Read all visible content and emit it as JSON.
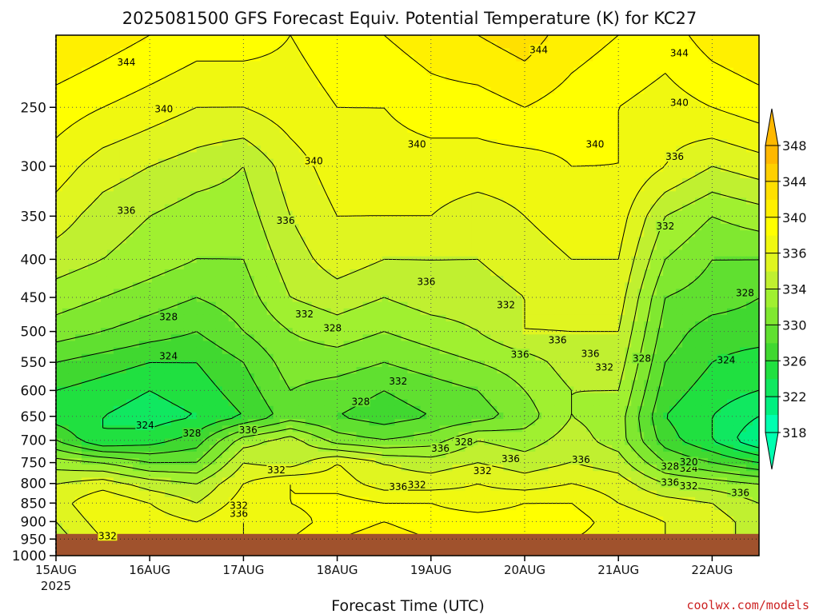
{
  "chart_data": {
    "type": "heatmap",
    "title": "2025081500 GFS Forecast Equiv. Potential Temperature (K) for KC27",
    "xlabel": "Forecast Time (UTC)",
    "ylabel": "",
    "credit": "coolwx.com/models",
    "y_scale": "log",
    "ylim": [
      1000,
      200
    ],
    "y_ticks": [
      "250",
      "300",
      "350",
      "400",
      "450",
      "500",
      "550",
      "600",
      "650",
      "700",
      "750",
      "800",
      "850",
      "900",
      "950",
      "1000"
    ],
    "y_tick_values": [
      250,
      300,
      350,
      400,
      450,
      500,
      550,
      600,
      650,
      700,
      750,
      800,
      850,
      900,
      950,
      1000
    ],
    "x_ticks": [
      "15AUG",
      "16AUG",
      "17AUG",
      "18AUG",
      "19AUG",
      "20AUG",
      "21AUG",
      "22AUG"
    ],
    "x_year": "2025",
    "x_range_days": [
      0,
      7.5
    ],
    "grid": true,
    "surface_pressure": 935,
    "surface_color": "#a0522d",
    "colorbar": {
      "levels": [
        318,
        320,
        322,
        324,
        326,
        328,
        330,
        332,
        334,
        336,
        338,
        340,
        342,
        344,
        346,
        348
      ],
      "labels": [
        "348",
        "344",
        "340",
        "336",
        "334",
        "330",
        "326",
        "322",
        "318"
      ],
      "colors": [
        "#00ffb0",
        "#00f080",
        "#10e860",
        "#20e040",
        "#40d830",
        "#60e030",
        "#80e830",
        "#a0f030",
        "#c0f030",
        "#e0f520",
        "#f0f810",
        "#ffff00",
        "#fff000",
        "#ffe000",
        "#ffd000",
        "#ffb800"
      ],
      "extend": "both"
    },
    "pressure_levels": [
      200,
      250,
      300,
      350,
      400,
      450,
      500,
      550,
      600,
      650,
      700,
      750,
      800,
      850,
      900,
      950
    ],
    "times": [
      0,
      0.5,
      1,
      1.5,
      2,
      2.5,
      3,
      3.5,
      4,
      4.5,
      5,
      5.5,
      6,
      6.5,
      7,
      7.5
    ],
    "theta_e": [
      [
        344,
        343,
        342,
        341,
        341,
        340,
        341,
        342,
        343,
        344,
        345,
        343,
        342,
        341,
        343,
        344
      ],
      [
        341,
        340,
        339,
        338,
        338,
        339,
        340,
        340,
        341,
        341,
        342,
        341,
        340,
        339,
        340,
        341
      ],
      [
        339,
        337,
        336,
        335,
        334,
        337,
        339,
        339,
        339,
        339,
        339,
        340,
        340,
        338,
        336,
        337
      ],
      [
        337,
        335,
        334,
        333,
        333,
        336,
        338,
        338,
        338,
        337,
        338,
        339,
        339,
        334,
        332,
        333
      ],
      [
        335,
        334,
        333,
        332,
        332,
        335,
        337,
        336,
        336,
        336,
        337,
        338,
        338,
        332,
        330,
        330
      ],
      [
        333,
        332,
        331,
        330,
        331,
        334,
        335,
        334,
        335,
        335,
        336,
        337,
        337,
        330,
        329,
        328
      ],
      [
        331,
        330,
        329,
        328,
        330,
        332,
        333,
        332,
        333,
        334,
        336,
        336,
        336,
        329,
        327,
        327
      ],
      [
        328,
        327,
        326,
        326,
        328,
        331,
        331,
        330,
        331,
        332,
        333,
        335,
        335,
        328,
        326,
        325
      ],
      [
        326,
        325,
        324,
        325,
        327,
        330,
        329,
        328,
        329,
        330,
        332,
        334,
        334,
        327,
        325,
        324
      ],
      [
        325,
        324,
        323,
        324,
        326,
        329,
        328,
        327,
        328,
        329,
        331,
        334,
        333,
        326,
        324,
        322
      ],
      [
        328,
        324,
        325,
        327,
        333,
        335,
        331,
        330,
        331,
        334,
        333,
        335,
        333,
        327,
        324,
        320
      ],
      [
        333,
        332,
        330,
        330,
        336,
        335,
        338,
        336,
        335,
        336,
        335,
        336,
        335,
        330,
        328,
        326
      ],
      [
        336,
        337,
        335,
        334,
        338,
        340,
        339,
        337,
        337,
        338,
        337,
        338,
        337,
        334,
        333,
        332
      ],
      [
        337,
        340,
        338,
        336,
        339,
        340,
        341,
        340,
        340,
        339,
        340,
        340,
        338,
        337,
        336,
        334
      ],
      [
        336,
        339,
        339,
        338,
        340,
        339,
        341,
        342,
        341,
        341,
        341,
        341,
        339,
        338,
        337,
        335
      ],
      [
        335,
        338,
        339,
        339,
        340,
        340,
        342,
        343,
        342,
        342,
        341,
        340,
        339,
        338,
        337,
        335
      ]
    ],
    "contour_labels": [
      {
        "text": "344",
        "t": 0.75,
        "p": 218
      },
      {
        "text": "344",
        "t": 5.15,
        "p": 210
      },
      {
        "text": "344",
        "t": 6.65,
        "p": 212
      },
      {
        "text": "340",
        "t": 1.15,
        "p": 252
      },
      {
        "text": "340",
        "t": 3.85,
        "p": 281
      },
      {
        "text": "340",
        "t": 5.75,
        "p": 281
      },
      {
        "text": "340",
        "t": 6.65,
        "p": 247
      },
      {
        "text": "340",
        "t": 2.75,
        "p": 296
      },
      {
        "text": "336",
        "t": 0.75,
        "p": 345
      },
      {
        "text": "336",
        "t": 2.45,
        "p": 356
      },
      {
        "text": "336",
        "t": 3.95,
        "p": 430
      },
      {
        "text": "336",
        "t": 6.6,
        "p": 292
      },
      {
        "text": "336",
        "t": 4.95,
        "p": 538
      },
      {
        "text": "336",
        "t": 5.35,
        "p": 515
      },
      {
        "text": "336",
        "t": 5.7,
        "p": 537
      },
      {
        "text": "336",
        "t": 5.6,
        "p": 745
      },
      {
        "text": "336",
        "t": 2.05,
        "p": 680
      },
      {
        "text": "336",
        "t": 4.1,
        "p": 720
      },
      {
        "text": "336",
        "t": 4.85,
        "p": 743
      },
      {
        "text": "336",
        "t": 3.65,
        "p": 810
      },
      {
        "text": "336",
        "t": 1.95,
        "p": 880
      },
      {
        "text": "336",
        "t": 6.55,
        "p": 800
      },
      {
        "text": "336",
        "t": 7.3,
        "p": 826
      },
      {
        "text": "332",
        "t": 6.5,
        "p": 362
      },
      {
        "text": "332",
        "t": 2.65,
        "p": 475
      },
      {
        "text": "332",
        "t": 4.8,
        "p": 462
      },
      {
        "text": "332",
        "t": 3.65,
        "p": 585
      },
      {
        "text": "332",
        "t": 5.85,
        "p": 560
      },
      {
        "text": "332",
        "t": 2.35,
        "p": 769
      },
      {
        "text": "332",
        "t": 3.85,
        "p": 805
      },
      {
        "text": "332",
        "t": 4.55,
        "p": 771
      },
      {
        "text": "332",
        "t": 1.95,
        "p": 859
      },
      {
        "text": "332",
        "t": 0.55,
        "p": 943
      },
      {
        "text": "332",
        "t": 6.75,
        "p": 808
      },
      {
        "text": "328",
        "t": 1.2,
        "p": 479
      },
      {
        "text": "328",
        "t": 2.95,
        "p": 496
      },
      {
        "text": "328",
        "t": 3.25,
        "p": 623
      },
      {
        "text": "328",
        "t": 4.35,
        "p": 706
      },
      {
        "text": "328",
        "t": 1.45,
        "p": 687
      },
      {
        "text": "328",
        "t": 6.25,
        "p": 545
      },
      {
        "text": "328",
        "t": 6.55,
        "p": 761
      },
      {
        "text": "328",
        "t": 7.35,
        "p": 445
      },
      {
        "text": "324",
        "t": 1.2,
        "p": 541
      },
      {
        "text": "324",
        "t": 0.95,
        "p": 670
      },
      {
        "text": "324",
        "t": 7.15,
        "p": 548
      },
      {
        "text": "324",
        "t": 6.75,
        "p": 766
      },
      {
        "text": "320",
        "t": 6.75,
        "p": 751
      }
    ]
  }
}
